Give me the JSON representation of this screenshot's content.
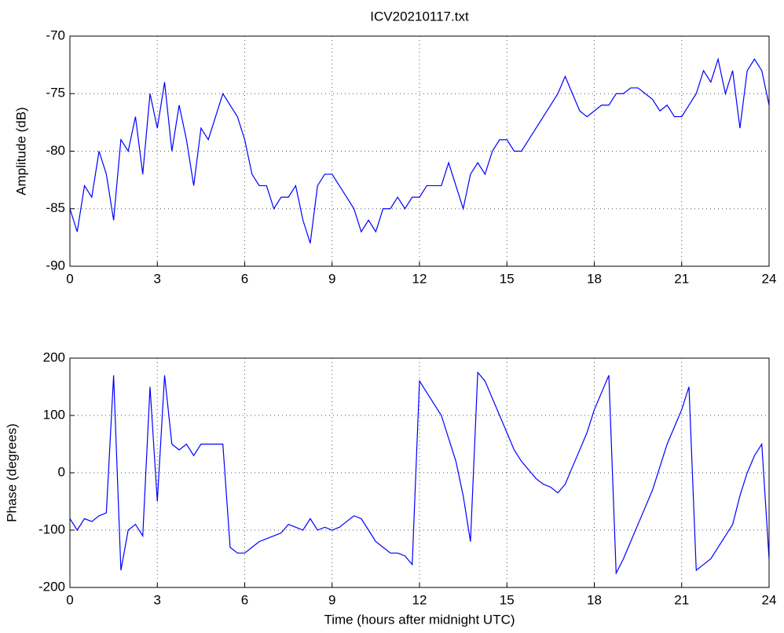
{
  "chart_data": [
    {
      "type": "line",
      "title": "ICV20210117.txt",
      "y_label": "Amplitude (dB)",
      "x": [
        0,
        0.25,
        0.5,
        0.75,
        1,
        1.25,
        1.5,
        1.75,
        2,
        2.25,
        2.5,
        2.75,
        3,
        3.25,
        3.5,
        3.75,
        4,
        4.25,
        4.5,
        4.75,
        5,
        5.25,
        5.5,
        5.75,
        6,
        6.25,
        6.5,
        6.75,
        7,
        7.25,
        7.5,
        7.75,
        8,
        8.25,
        8.5,
        8.75,
        9,
        9.25,
        9.5,
        9.75,
        10,
        10.25,
        10.5,
        10.75,
        11,
        11.25,
        11.5,
        11.75,
        12,
        12.25,
        12.5,
        12.75,
        13,
        13.25,
        13.5,
        13.75,
        14,
        14.25,
        14.5,
        14.75,
        15,
        15.25,
        15.5,
        15.75,
        16,
        16.25,
        16.5,
        16.75,
        17,
        17.25,
        17.5,
        17.75,
        18,
        18.25,
        18.5,
        18.75,
        19,
        19.25,
        19.5,
        19.75,
        20,
        20.25,
        20.5,
        20.75,
        21,
        21.25,
        21.5,
        21.75,
        22,
        22.25,
        22.5,
        22.75,
        23,
        23.25,
        23.5,
        23.75,
        24
      ],
      "series": [
        {
          "name": "Amplitude",
          "color": "#0000ff",
          "values": [
            -85,
            -87,
            -83,
            -84,
            -80,
            -82,
            -86,
            -79,
            -80,
            -77,
            -82,
            -75,
            -78,
            -74,
            -80,
            -76,
            -79,
            -83,
            -78,
            -79,
            -77,
            -75,
            -76,
            -77,
            -79,
            -82,
            -83,
            -83,
            -85,
            -84,
            -84,
            -83,
            -86,
            -88,
            -83,
            -82,
            -82,
            -83,
            -84,
            -85,
            -87,
            -86,
            -87,
            -85,
            -85,
            -84,
            -85,
            -84,
            -84,
            -83,
            -83,
            -83,
            -81,
            -83,
            -85,
            -82,
            -81,
            -82,
            -80,
            -79,
            -79,
            -80,
            -80,
            -79,
            -78,
            -77,
            -76,
            -75,
            -73.5,
            -75,
            -76.5,
            -77,
            -76.5,
            -76,
            -76,
            -75,
            -75,
            -74.5,
            -74.5,
            -75,
            -75.5,
            -76.5,
            -76,
            -77,
            -77,
            -76,
            -75,
            -73,
            -74,
            -72,
            -75,
            -73,
            -78,
            -73,
            -72,
            -73,
            -76
          ]
        }
      ],
      "xlim": [
        0,
        24
      ],
      "xticks": [
        0,
        3,
        6,
        9,
        12,
        15,
        18,
        21,
        24
      ],
      "ylim": [
        -90,
        -70
      ],
      "yticks": [
        -90,
        -85,
        -80,
        -75,
        -70
      ],
      "grid": true
    },
    {
      "type": "line",
      "x_label": "Time (hours after midnight UTC)",
      "y_label": "Phase (degrees)",
      "x": [
        0,
        0.25,
        0.5,
        0.75,
        1,
        1.25,
        1.5,
        1.75,
        2,
        2.25,
        2.5,
        2.75,
        3,
        3.25,
        3.5,
        3.75,
        4,
        4.25,
        4.5,
        4.75,
        5,
        5.25,
        5.5,
        5.75,
        6,
        6.25,
        6.5,
        6.75,
        7,
        7.25,
        7.5,
        7.75,
        8,
        8.25,
        8.5,
        8.75,
        9,
        9.25,
        9.5,
        9.75,
        10,
        10.25,
        10.5,
        10.75,
        11,
        11.25,
        11.5,
        11.75,
        12,
        12.25,
        12.5,
        12.75,
        13,
        13.25,
        13.5,
        13.75,
        14,
        14.25,
        14.5,
        14.75,
        15,
        15.25,
        15.5,
        15.75,
        16,
        16.25,
        16.5,
        16.75,
        17,
        17.25,
        17.5,
        17.75,
        18,
        18.25,
        18.5,
        18.75,
        19,
        19.25,
        19.5,
        19.75,
        20,
        20.25,
        20.5,
        20.75,
        21,
        21.25,
        21.5,
        21.75,
        22,
        22.25,
        22.5,
        22.75,
        23,
        23.25,
        23.5,
        23.75,
        24
      ],
      "series": [
        {
          "name": "Phase",
          "color": "#0000ff",
          "values": [
            -80,
            -100,
            -80,
            -85,
            -75,
            -70,
            170,
            -170,
            -100,
            -90,
            -110,
            150,
            -50,
            170,
            50,
            40,
            50,
            30,
            50,
            50,
            50,
            50,
            -130,
            -140,
            -140,
            -130,
            -120,
            -115,
            -110,
            -105,
            -90,
            -95,
            -100,
            -80,
            -100,
            -95,
            -100,
            -95,
            -85,
            -75,
            -80,
            -100,
            -120,
            -130,
            -140,
            -140,
            -145,
            -160,
            160,
            140,
            120,
            100,
            60,
            20,
            -40,
            -120,
            175,
            160,
            130,
            100,
            70,
            40,
            20,
            5,
            -10,
            -20,
            -25,
            -35,
            -20,
            10,
            40,
            70,
            110,
            140,
            170,
            -175,
            -150,
            -120,
            -90,
            -60,
            -30,
            10,
            50,
            80,
            110,
            150,
            -170,
            -160,
            -150,
            -130,
            -110,
            -90,
            -40,
            0,
            30,
            50,
            -150
          ]
        }
      ],
      "xlim": [
        0,
        24
      ],
      "xticks": [
        0,
        3,
        6,
        9,
        12,
        15,
        18,
        21,
        24
      ],
      "ylim": [
        -200,
        200
      ],
      "yticks": [
        -200,
        -100,
        0,
        100,
        200
      ],
      "grid": true
    }
  ]
}
